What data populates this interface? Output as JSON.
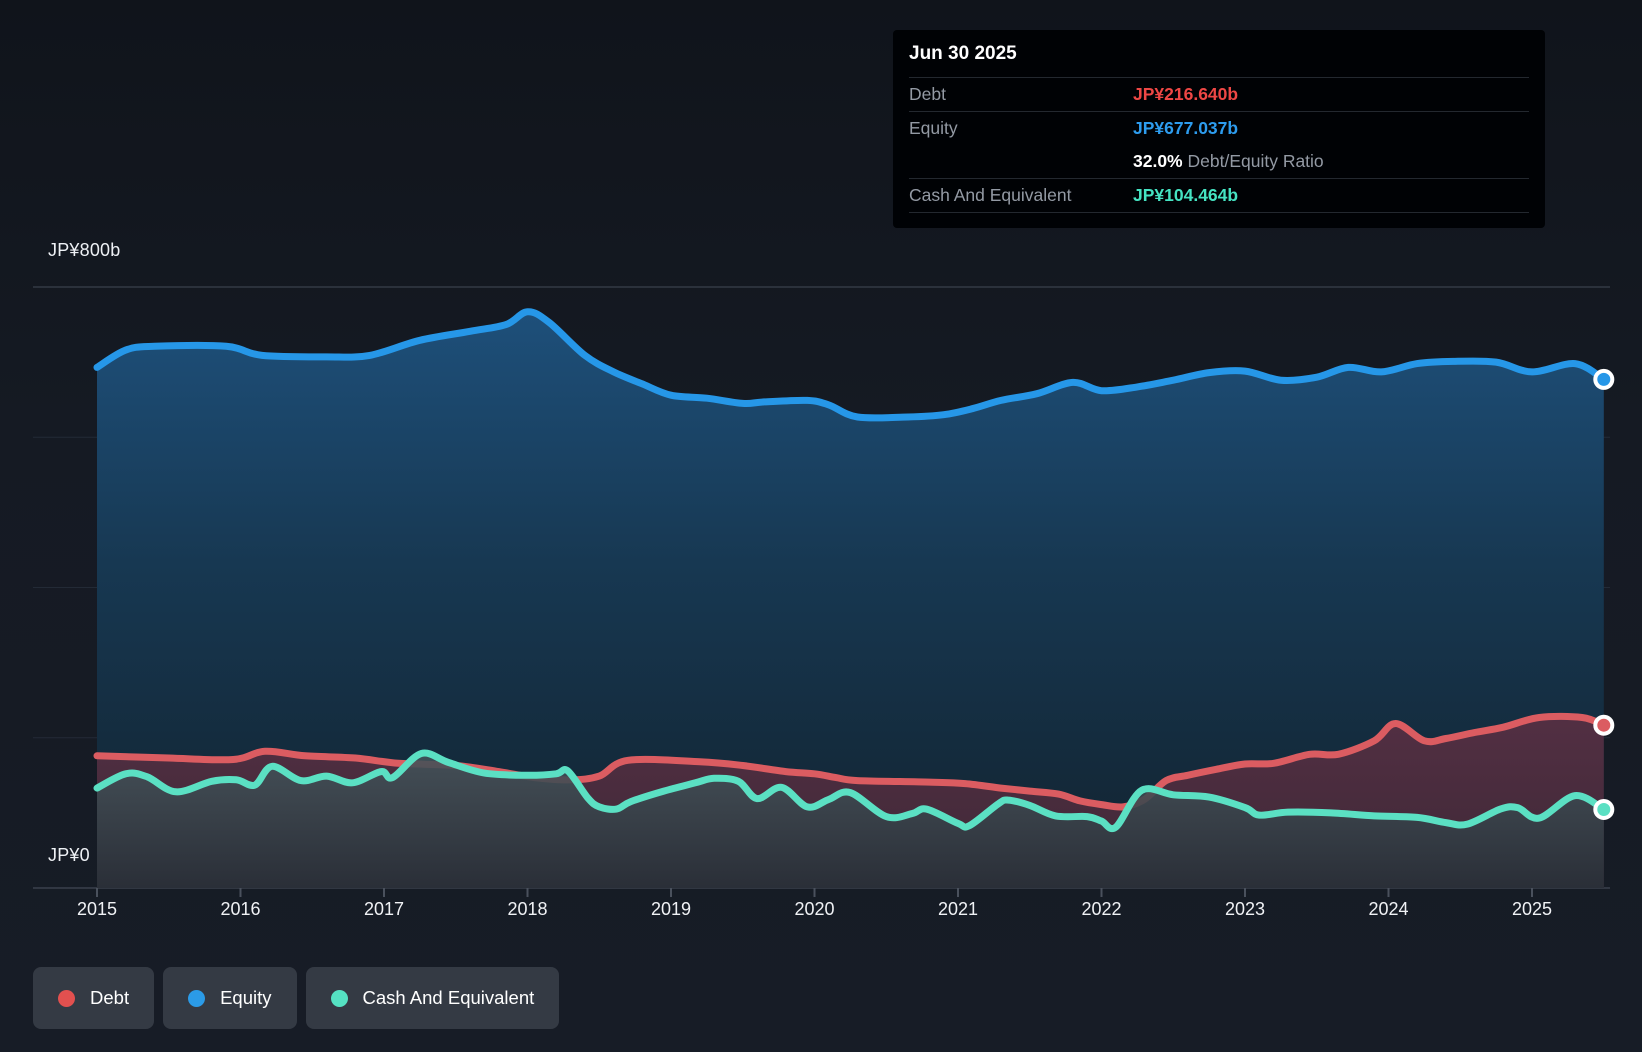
{
  "axis": {
    "y_top_label": "JP¥800b",
    "y_zero_label": "JP¥0",
    "x_ticks": [
      2015,
      2016,
      2017,
      2018,
      2019,
      2020,
      2021,
      2022,
      2023,
      2024,
      2025
    ]
  },
  "tooltip": {
    "date": "Jun 30 2025",
    "debt_label": "Debt",
    "debt_value": "JP¥216.640b",
    "equity_label": "Equity",
    "equity_value": "JP¥677.037b",
    "ratio_value": "32.0%",
    "ratio_label": " Debt/Equity Ratio",
    "cash_label": "Cash And Equivalent",
    "cash_value": "JP¥104.464b"
  },
  "legend": {
    "items": [
      {
        "id": "debt",
        "label": "Debt",
        "color": "#e2504f"
      },
      {
        "id": "equity",
        "label": "Equity",
        "color": "#2b9be8"
      },
      {
        "id": "cash",
        "label": "Cash And Equivalent",
        "color": "#55e2c3"
      }
    ]
  },
  "colors": {
    "background": "#141821",
    "gridline_top": "#434a56",
    "gridline_faint": "#232a36",
    "axis_line": "#3a414d",
    "tick": "#4a515d",
    "tooltip_bg": "#000205",
    "tooltip_label": "#939aa4",
    "debt_value_red": "#ee4745",
    "equity_value_blue": "#2d9cee",
    "cash_value_teal": "#45e3c2"
  },
  "chart_data": {
    "type": "area",
    "unit": "JP¥ billions",
    "ylim": [
      0,
      800
    ],
    "y_gridlines": [
      800,
      600,
      400,
      200,
      0
    ],
    "x_range_years": [
      2015.0,
      2025.5
    ],
    "legend_position": "bottom-left",
    "series": [
      {
        "name": "Equity",
        "line_color": "#2697e8",
        "fill_gradient": "gradEquity",
        "fill_opacity": 1,
        "end_value": 677.037,
        "points": [
          [
            2015.0,
            693
          ],
          [
            2015.2,
            716
          ],
          [
            2015.4,
            721
          ],
          [
            2015.9,
            721
          ],
          [
            2016.15,
            709
          ],
          [
            2016.6,
            707
          ],
          [
            2016.9,
            709
          ],
          [
            2017.25,
            729
          ],
          [
            2017.6,
            741
          ],
          [
            2017.85,
            750
          ],
          [
            2018.0,
            767
          ],
          [
            2018.15,
            753
          ],
          [
            2018.4,
            709
          ],
          [
            2018.6,
            687
          ],
          [
            2018.8,
            671
          ],
          [
            2019.0,
            656
          ],
          [
            2019.25,
            652
          ],
          [
            2019.5,
            645
          ],
          [
            2019.65,
            647
          ],
          [
            2019.95,
            649
          ],
          [
            2020.1,
            643
          ],
          [
            2020.3,
            627
          ],
          [
            2020.65,
            627
          ],
          [
            2020.9,
            630
          ],
          [
            2021.1,
            638
          ],
          [
            2021.3,
            649
          ],
          [
            2021.55,
            658
          ],
          [
            2021.8,
            673
          ],
          [
            2022.0,
            662
          ],
          [
            2022.25,
            667
          ],
          [
            2022.5,
            676
          ],
          [
            2022.75,
            686
          ],
          [
            2023.0,
            688
          ],
          [
            2023.25,
            676
          ],
          [
            2023.5,
            680
          ],
          [
            2023.72,
            693
          ],
          [
            2023.95,
            687
          ],
          [
            2024.2,
            698
          ],
          [
            2024.45,
            701
          ],
          [
            2024.75,
            700
          ],
          [
            2025.0,
            687
          ],
          [
            2025.3,
            698
          ],
          [
            2025.5,
            677.037
          ]
        ]
      },
      {
        "name": "Debt",
        "line_color": "#db5c61",
        "fill_gradient": "gradDebt",
        "fill_opacity": 0.96,
        "end_value": 216.64,
        "points": [
          [
            2015.0,
            176
          ],
          [
            2015.5,
            173
          ],
          [
            2015.95,
            171
          ],
          [
            2016.17,
            182
          ],
          [
            2016.45,
            176
          ],
          [
            2016.8,
            173
          ],
          [
            2017.1,
            166
          ],
          [
            2017.5,
            163
          ],
          [
            2017.8,
            155
          ],
          [
            2018.05,
            147
          ],
          [
            2018.3,
            144
          ],
          [
            2018.5,
            149
          ],
          [
            2018.7,
            170
          ],
          [
            2019.2,
            168
          ],
          [
            2019.5,
            163
          ],
          [
            2019.8,
            155
          ],
          [
            2020.0,
            152
          ],
          [
            2020.15,
            147
          ],
          [
            2020.3,
            143
          ],
          [
            2020.8,
            141
          ],
          [
            2021.05,
            139
          ],
          [
            2021.3,
            133
          ],
          [
            2021.5,
            129
          ],
          [
            2021.7,
            125
          ],
          [
            2021.85,
            116
          ],
          [
            2022.0,
            111
          ],
          [
            2022.15,
            108
          ],
          [
            2022.3,
            118
          ],
          [
            2022.45,
            143
          ],
          [
            2022.6,
            150
          ],
          [
            2022.8,
            158
          ],
          [
            2023.0,
            165
          ],
          [
            2023.2,
            166
          ],
          [
            2023.45,
            178
          ],
          [
            2023.65,
            178
          ],
          [
            2023.9,
            196
          ],
          [
            2024.05,
            219
          ],
          [
            2024.25,
            196
          ],
          [
            2024.4,
            199
          ],
          [
            2024.6,
            207
          ],
          [
            2024.8,
            214
          ],
          [
            2025.05,
            227
          ],
          [
            2025.35,
            227
          ],
          [
            2025.5,
            216.64
          ]
        ]
      },
      {
        "name": "Cash And Equivalent",
        "line_color": "#5be0c3",
        "fill_gradient": "gradCash",
        "fill_opacity": 0.88,
        "end_value": 104.464,
        "points": [
          [
            2015.0,
            133
          ],
          [
            2015.2,
            152
          ],
          [
            2015.35,
            148
          ],
          [
            2015.55,
            128
          ],
          [
            2015.8,
            142
          ],
          [
            2015.97,
            144
          ],
          [
            2016.1,
            137
          ],
          [
            2016.22,
            162
          ],
          [
            2016.42,
            143
          ],
          [
            2016.6,
            149
          ],
          [
            2016.78,
            140
          ],
          [
            2016.98,
            155
          ],
          [
            2017.06,
            147
          ],
          [
            2017.26,
            179
          ],
          [
            2017.45,
            167
          ],
          [
            2017.7,
            153
          ],
          [
            2018.0,
            150
          ],
          [
            2018.2,
            152
          ],
          [
            2018.28,
            156
          ],
          [
            2018.42,
            120
          ],
          [
            2018.5,
            108
          ],
          [
            2018.62,
            105
          ],
          [
            2018.72,
            115
          ],
          [
            2018.95,
            129
          ],
          [
            2019.17,
            140
          ],
          [
            2019.3,
            146
          ],
          [
            2019.47,
            142
          ],
          [
            2019.6,
            119
          ],
          [
            2019.77,
            134
          ],
          [
            2019.95,
            108
          ],
          [
            2020.1,
            118
          ],
          [
            2020.25,
            127
          ],
          [
            2020.5,
            95
          ],
          [
            2020.68,
            99
          ],
          [
            2020.78,
            105
          ],
          [
            2021.0,
            86
          ],
          [
            2021.08,
            83
          ],
          [
            2021.28,
            112
          ],
          [
            2021.35,
            117
          ],
          [
            2021.5,
            110
          ],
          [
            2021.68,
            96
          ],
          [
            2021.9,
            95
          ],
          [
            2022.0,
            89
          ],
          [
            2022.1,
            81
          ],
          [
            2022.28,
            130
          ],
          [
            2022.5,
            124
          ],
          [
            2022.75,
            121
          ],
          [
            2023.0,
            107
          ],
          [
            2023.1,
            97
          ],
          [
            2023.3,
            101
          ],
          [
            2023.6,
            100
          ],
          [
            2023.9,
            96
          ],
          [
            2024.2,
            94
          ],
          [
            2024.4,
            87
          ],
          [
            2024.55,
            85
          ],
          [
            2024.78,
            105
          ],
          [
            2024.9,
            107
          ],
          [
            2025.05,
            93
          ],
          [
            2025.3,
            123
          ],
          [
            2025.5,
            104.464
          ]
        ]
      }
    ]
  }
}
